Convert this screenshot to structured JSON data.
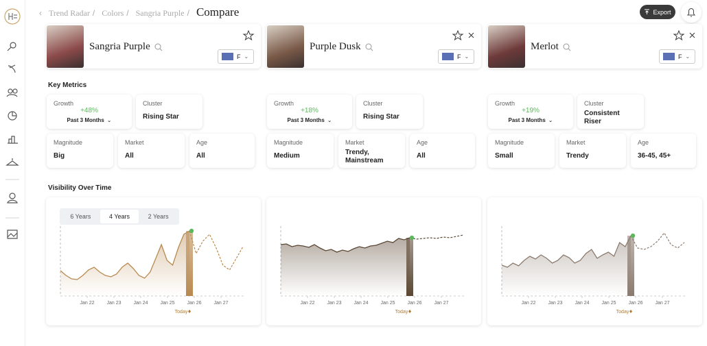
{
  "breadcrumb": {
    "items": [
      "Trend Radar",
      "Colors",
      "Sangria Purple"
    ],
    "separator": "/",
    "current": "Compare"
  },
  "export_label": "Export",
  "key_metrics_title": "Key Metrics",
  "visibility_title": "Visibility Over Time",
  "metric_labels": {
    "growth": "Growth",
    "cluster": "Cluster",
    "magnitude": "Magnitude",
    "market": "Market",
    "age": "Age"
  },
  "range_options": [
    "6 Years",
    "4 Years",
    "2 Years"
  ],
  "range_selected": 1,
  "xticks": [
    "Jan 22",
    "Jan 23",
    "Jan 24",
    "Jan 25",
    "Jan 26",
    "Jan 27"
  ],
  "today_label": "Today",
  "columns": [
    {
      "name": "Sangria Purple",
      "flag_label": "F",
      "removable": false,
      "image_color": "#8c4a4a",
      "growth": "+48%",
      "period": "Past 3 Months",
      "cluster": "Rising Star",
      "magnitude": "Big",
      "market": "All",
      "age": "All",
      "chart": {
        "color": "#b8894f",
        "values": [
          37,
          30,
          25,
          24,
          30,
          38,
          42,
          35,
          30,
          28,
          32,
          42,
          48,
          40,
          30,
          26,
          35,
          55,
          75,
          52,
          45,
          70,
          90,
          95
        ],
        "forecast": [
          62,
          80,
          90,
          70,
          45,
          38,
          55,
          72
        ]
      }
    },
    {
      "name": "Purple Dusk",
      "flag_label": "F",
      "removable": true,
      "image_color": "#7a5a48",
      "growth": "+18%",
      "period": "Past 3 Months",
      "cluster": "Rising Star",
      "magnitude": "Medium",
      "market": "Trendy, Mainstream",
      "age": "All",
      "chart": {
        "color": "#5a4632",
        "values": [
          75,
          76,
          72,
          74,
          73,
          71,
          75,
          70,
          66,
          68,
          64,
          67,
          65,
          69,
          72,
          70,
          73,
          74,
          77,
          80,
          78,
          84,
          82,
          85
        ],
        "forecast": [
          83,
          84,
          85,
          84,
          86,
          85,
          87,
          89
        ]
      }
    },
    {
      "name": "Merlot",
      "flag_label": "F",
      "removable": true,
      "image_color": "#6e3a3a",
      "growth": "+19%",
      "period": "Past 3 Months",
      "cluster": "Consistent Riser",
      "magnitude": "Small",
      "market": "Trendy",
      "age": "36-45, 45+",
      "chart": {
        "color": "#8a7a6e",
        "values": [
          45,
          42,
          48,
          44,
          52,
          58,
          54,
          60,
          55,
          48,
          52,
          60,
          56,
          48,
          52,
          62,
          68,
          55,
          60,
          64,
          58,
          78,
          72,
          88
        ],
        "forecast": [
          70,
          68,
          72,
          80,
          92,
          75,
          70,
          78
        ]
      }
    }
  ]
}
